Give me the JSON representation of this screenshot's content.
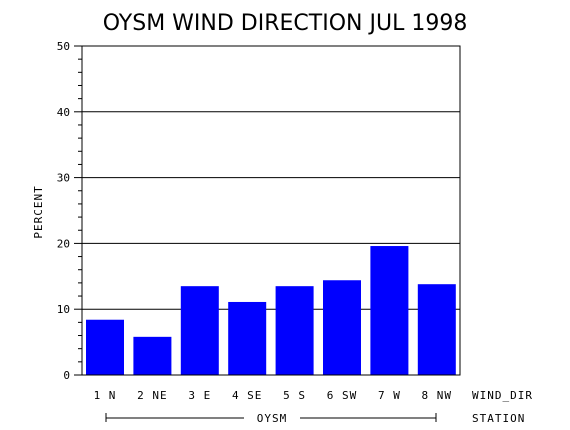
{
  "chart_data": {
    "type": "bar",
    "title": "OYSM WIND DIRECTION JUL 1998",
    "ylabel": "PERCENT",
    "xlabel": "WIND_DIR",
    "group_label": "OYSM",
    "group_axis_label": "STATION",
    "categories": [
      "1 N",
      "2 NE",
      "3 E",
      "4 SE",
      "5 S",
      "6 SW",
      "7 W",
      "8 NW"
    ],
    "values": [
      8.4,
      5.8,
      13.5,
      11.1,
      13.5,
      14.4,
      19.6,
      13.8
    ],
    "ylim": [
      0,
      50
    ],
    "yticks": [
      "0",
      "10",
      "20",
      "30",
      "40",
      "50"
    ],
    "grid": true,
    "bar_color": "#0000ff"
  }
}
